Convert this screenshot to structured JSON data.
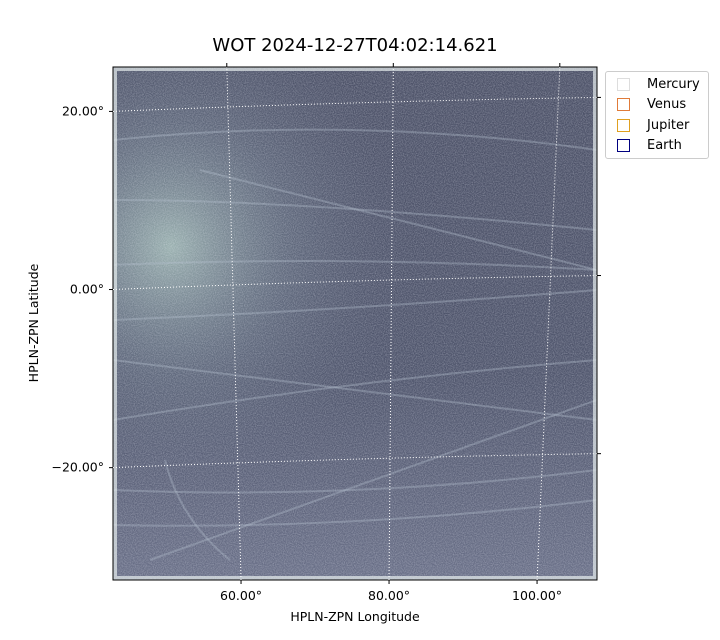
{
  "chart_data": {
    "type": "image",
    "title": "WOT 2024-12-27T04:02:14.621",
    "x_label": "HPLN-ZPN Longitude",
    "y_label": "HPLN-ZPN Latitude",
    "xlim": [
      42.7,
      108.1
    ],
    "ylim": [
      -33.4,
      24.2
    ],
    "xticks": [
      {
        "value": 60,
        "label": "60.00°"
      },
      {
        "value": 80,
        "label": "80.00°"
      },
      {
        "value": 100,
        "label": "100.00°"
      }
    ],
    "yticks": [
      {
        "value": -20,
        "label": "−20.00°"
      },
      {
        "value": 0,
        "label": "0.00°"
      },
      {
        "value": 20,
        "label": "20.00°"
      }
    ],
    "grid": true,
    "legend_position": "outside-upper-right",
    "series": [
      {
        "name": "Mercury",
        "color": "#dddddd"
      },
      {
        "name": "Venus",
        "color": "#e07b39"
      },
      {
        "name": "Jupiter",
        "color": "#e0a020"
      },
      {
        "name": "Earth",
        "color": "#000080"
      }
    ]
  }
}
